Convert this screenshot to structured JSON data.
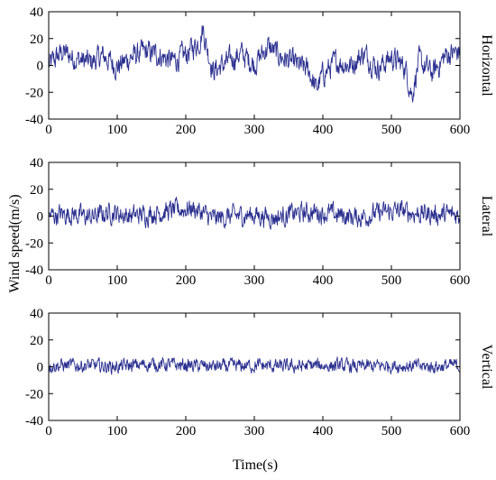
{
  "colors": {
    "series": "#2a2f8f",
    "axis": "#000000"
  },
  "chart_data": [
    {
      "type": "line",
      "panel_label": "Horizontal",
      "xlim": [
        0,
        600
      ],
      "ylim": [
        -40,
        40
      ],
      "xticks": [
        "0",
        "100",
        "200",
        "300",
        "400",
        "500",
        "600"
      ],
      "yticks": [
        "40",
        "20",
        "0",
        "-20",
        "-40"
      ],
      "x": [
        0,
        20,
        40,
        60,
        80,
        100,
        120,
        140,
        160,
        180,
        200,
        210,
        220,
        225,
        230,
        240,
        260,
        280,
        300,
        320,
        340,
        360,
        380,
        390,
        400,
        420,
        440,
        460,
        480,
        500,
        520,
        530,
        540,
        560,
        580,
        600
      ],
      "values": [
        0,
        10,
        5,
        2,
        7,
        -1,
        6,
        10,
        8,
        3,
        8,
        13,
        18,
        28,
        15,
        -4,
        2,
        9,
        1,
        14,
        6,
        1,
        -4,
        -18,
        -7,
        3,
        0,
        9,
        -2,
        6,
        -1,
        -22,
        3,
        -6,
        8,
        10
      ],
      "noise_amplitude": 7
    },
    {
      "type": "line",
      "panel_label": "Lateral",
      "xlim": [
        0,
        600
      ],
      "ylim": [
        -40,
        40
      ],
      "xticks": [
        "0",
        "100",
        "200",
        "300",
        "400",
        "500",
        "600"
      ],
      "yticks": [
        "40",
        "20",
        "0",
        "-20",
        "-40"
      ],
      "x": [
        0,
        30,
        60,
        90,
        120,
        150,
        180,
        210,
        240,
        270,
        300,
        330,
        360,
        390,
        420,
        450,
        480,
        510,
        540,
        570,
        600
      ],
      "values": [
        0,
        2,
        -1,
        3,
        0,
        2,
        4,
        6,
        -2,
        0,
        1,
        -1,
        2,
        3,
        1,
        -1,
        2,
        4,
        2,
        1,
        1
      ],
      "noise_amplitude": 6
    },
    {
      "type": "line",
      "panel_label": "Vertical",
      "xlim": [
        0,
        600
      ],
      "ylim": [
        -40,
        40
      ],
      "xticks": [
        "0",
        "100",
        "200",
        "300",
        "400",
        "500",
        "600"
      ],
      "yticks": [
        "40",
        "20",
        "0",
        "-20",
        "-40"
      ],
      "x": [
        0,
        50,
        100,
        150,
        200,
        250,
        300,
        350,
        400,
        450,
        500,
        550,
        600
      ],
      "values": [
        1,
        1,
        0,
        2,
        1,
        0,
        1,
        0,
        1,
        0,
        1,
        0,
        1
      ],
      "noise_amplitude": 4
    }
  ],
  "ylabel": "Wind speed(m/s)",
  "xlabel": "Time(s)"
}
